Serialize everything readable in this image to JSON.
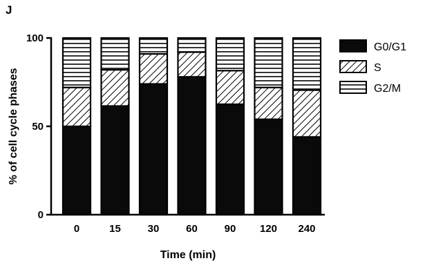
{
  "panel_label": "J",
  "chart_data": {
    "type": "bar",
    "stacked": true,
    "categories": [
      "0",
      "15",
      "30",
      "60",
      "90",
      "120",
      "240"
    ],
    "series": [
      {
        "name": "G0/G1",
        "values": [
          50,
          61.5,
          74,
          78,
          62.5,
          54,
          44
        ],
        "pattern": "solid",
        "color": "#0a0a0a"
      },
      {
        "name": "S",
        "values": [
          22,
          20.5,
          17,
          14,
          19,
          18,
          26.5
        ],
        "pattern": "diagonal-hatch",
        "color": "#000000"
      },
      {
        "name": "G2/M",
        "values": [
          28,
          18,
          9,
          8,
          18.5,
          28,
          29.5
        ],
        "pattern": "horizontal-lines",
        "color": "#000000"
      }
    ],
    "xlabel": "Time (min)",
    "ylabel": "% of cell cycle phases",
    "ylim": [
      0,
      100
    ],
    "yticks": [
      "0",
      "50",
      "100"
    ],
    "grid": false,
    "legend_position": "right"
  }
}
